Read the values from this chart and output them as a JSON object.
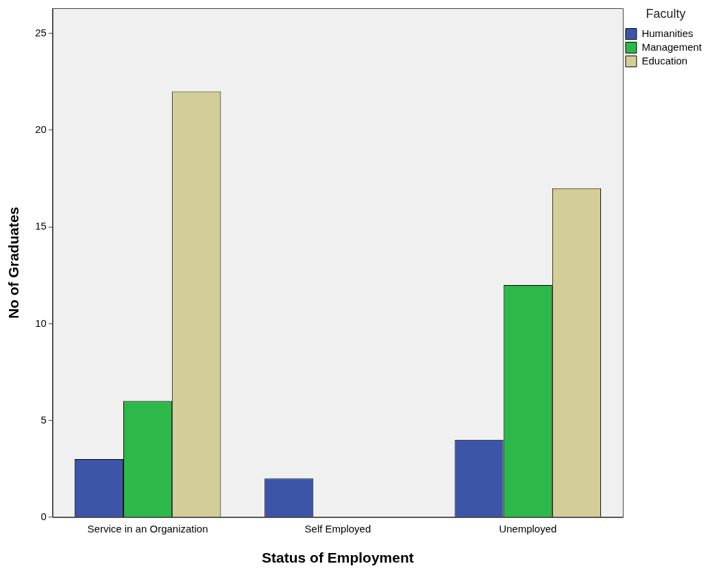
{
  "chart_data": {
    "type": "bar",
    "xlabel": "Status of Employment",
    "ylabel": "No of Graduates",
    "legend_title": "Faculty",
    "legend": "top right",
    "categories": [
      "Service in an Organization",
      "Self Employed",
      "Unemployed"
    ],
    "series": [
      {
        "name": "Humanities",
        "color": "#3d55a8",
        "values": [
          3,
          2,
          4
        ]
      },
      {
        "name": "Management",
        "color": "#2db84a",
        "values": [
          6,
          0,
          12
        ]
      },
      {
        "name": "Education",
        "color": "#d3ce97",
        "values": [
          22,
          0,
          17
        ]
      }
    ],
    "ylim": [
      0,
      26.3
    ],
    "yticks": [
      0,
      5,
      10,
      15,
      20,
      25
    ],
    "grid": false
  }
}
